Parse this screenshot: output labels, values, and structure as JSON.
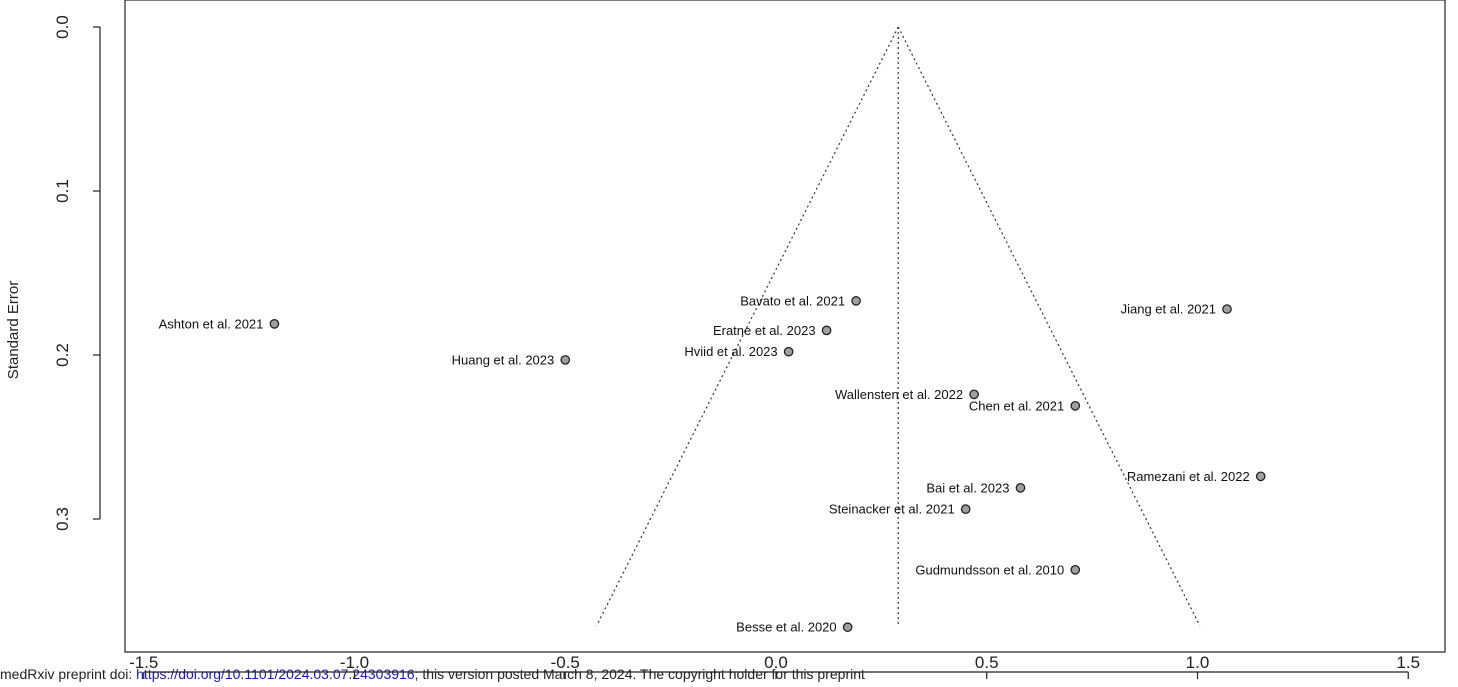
{
  "footer": {
    "prefix": "medRxiv preprint doi: ",
    "link": "https://doi.org/10.1101/2024.03.07.24303916",
    "suffix": "; this version posted March 8, 2024. The copyright holder for this preprint"
  },
  "chart_data": {
    "type": "scatter",
    "subtype": "funnel",
    "xlabel": "",
    "ylabel": "Standard Error",
    "xlim": [
      -1.6,
      1.6
    ],
    "ylim": [
      0,
      0.365
    ],
    "y_reversed": true,
    "x_ticks": [
      -1.5,
      -1.0,
      -0.5,
      0.0,
      0.5,
      1.0,
      1.5
    ],
    "x_tick_labels": [
      "-1.5",
      "-1.0",
      "-0.5",
      "0.0",
      "0.5",
      "1.0",
      "1.5"
    ],
    "y_ticks": [
      0.0,
      0.1,
      0.2,
      0.3
    ],
    "y_tick_labels": [
      "0.0",
      "0.1",
      "0.2",
      "0.3"
    ],
    "summary_estimate": 0.29,
    "funnel_ci_multiplier": 1.96,
    "funnel_max_se": 0.365,
    "point_color": "#a0a0a0",
    "points": [
      {
        "label": "Ashton et al. 2021",
        "x": -1.19,
        "y": 0.181
      },
      {
        "label": "Huang et al. 2023",
        "x": -0.5,
        "y": 0.203
      },
      {
        "label": "Bavato et al. 2021",
        "x": 0.19,
        "y": 0.167
      },
      {
        "label": "Eratne et al. 2023",
        "x": 0.12,
        "y": 0.185
      },
      {
        "label": "Hviid et al. 2023",
        "x": 0.03,
        "y": 0.198
      },
      {
        "label": "Jiang et al. 2021",
        "x": 1.07,
        "y": 0.172
      },
      {
        "label": "Wallensten et al. 2022",
        "x": 0.47,
        "y": 0.224
      },
      {
        "label": "Chen et al. 2021",
        "x": 0.71,
        "y": 0.231
      },
      {
        "label": "Ramezani et al. 2022",
        "x": 1.15,
        "y": 0.274
      },
      {
        "label": "Bai et al. 2023",
        "x": 0.58,
        "y": 0.281
      },
      {
        "label": "Steinacker et al. 2021",
        "x": 0.45,
        "y": 0.294
      },
      {
        "label": "Gudmundsson et al. 2010",
        "x": 0.71,
        "y": 0.331
      },
      {
        "label": "Besse et al. 2020",
        "x": 0.17,
        "y": 0.366
      }
    ]
  }
}
